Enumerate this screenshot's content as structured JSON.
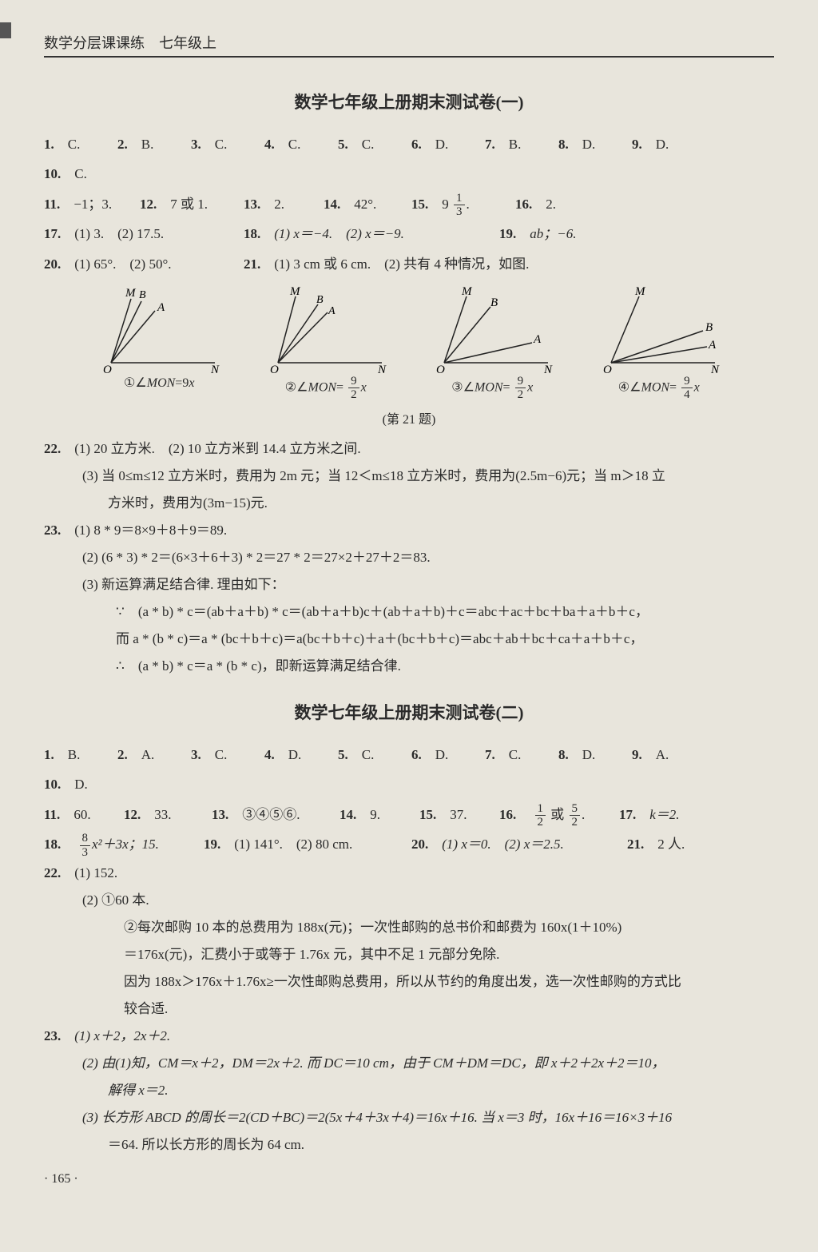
{
  "header": "数学分层课课练　七年级上",
  "title1": "数学七年级上册期末测试卷(一)",
  "title2": "数学七年级上册期末测试卷(二)",
  "caption21": "(第 21 题)",
  "pagenum": "· 165 ·",
  "t1": {
    "mc": [
      {
        "n": "1.",
        "a": "C."
      },
      {
        "n": "2.",
        "a": "B."
      },
      {
        "n": "3.",
        "a": "C."
      },
      {
        "n": "4.",
        "a": "C."
      },
      {
        "n": "5.",
        "a": "C."
      },
      {
        "n": "6.",
        "a": "D."
      },
      {
        "n": "7.",
        "a": "B."
      },
      {
        "n": "8.",
        "a": "D."
      },
      {
        "n": "9.",
        "a": "D."
      },
      {
        "n": "10.",
        "a": "C."
      }
    ],
    "r2": {
      "q11": "11.",
      "a11": "−1；3.",
      "q12": "12.",
      "a12": "7 或 1.",
      "q13": "13.",
      "a13": "2.",
      "q14": "14.",
      "a14": "42°.",
      "q15": "15.",
      "a15a": "9",
      "a15n": "1",
      "a15d": "3",
      "a15e": ".",
      "q16": "16.",
      "a16": "2."
    },
    "r3": {
      "q17": "17.",
      "a17": "(1) 3.　(2) 17.5.",
      "q18": "18.",
      "a18": "(1) x＝−4.　(2) x＝−9.",
      "q19": "19.",
      "a19": "ab；−6."
    },
    "r4": {
      "q20": "20.",
      "a20": "(1) 65°.　(2) 50°.",
      "q21": "21.",
      "a21": "(1) 3 cm 或 6 cm.　(2) 共有 4 种情况，如图."
    },
    "diag": {
      "l1a": "①∠",
      "l1m": "MON",
      "l1b": "=9",
      "l1x": "x",
      "l2a": "②∠",
      "l2m": "MON",
      "l2b": "= ",
      "l2n": "9",
      "l2d": "2",
      "l2x": "x",
      "l3a": "③∠",
      "l3m": "MON",
      "l3b": "= ",
      "l3n": "9",
      "l3d": "2",
      "l3x": "x",
      "l4a": "④∠",
      "l4m": "MON",
      "l4b": "= ",
      "l4n": "9",
      "l4d": "4",
      "l4x": "x"
    },
    "q22": {
      "head": "22.",
      "p1": "(1) 20 立方米.　(2) 10 立方米到 14.4 立方米之间.",
      "p2": "(3) 当 0≤m≤12 立方米时，费用为 2m 元；当 12＜m≤18 立方米时，费用为(2.5m−6)元；当 m＞18 立",
      "p3": "方米时，费用为(3m−15)元."
    },
    "q23": {
      "head": "23.",
      "p1": "(1) 8 * 9＝8×9＋8＋9＝89.",
      "p2": "(2) (6 * 3) * 2＝(6×3＋6＋3) * 2＝27 * 2＝27×2＋27＋2＝83.",
      "p3": "(3) 新运算满足结合律. 理由如下：",
      "p4": "∵　(a * b) * c＝(ab＋a＋b) * c＝(ab＋a＋b)c＋(ab＋a＋b)＋c＝abc＋ac＋bc＋ba＋a＋b＋c，",
      "p5": "而 a * (b * c)＝a * (bc＋b＋c)＝a(bc＋b＋c)＋a＋(bc＋b＋c)＝abc＋ab＋bc＋ca＋a＋b＋c，",
      "p6": "∴　(a * b) * c＝a * (b * c)，即新运算满足结合律."
    }
  },
  "t2": {
    "mc": [
      {
        "n": "1.",
        "a": "B."
      },
      {
        "n": "2.",
        "a": "A."
      },
      {
        "n": "3.",
        "a": "C."
      },
      {
        "n": "4.",
        "a": "D."
      },
      {
        "n": "5.",
        "a": "C."
      },
      {
        "n": "6.",
        "a": "D."
      },
      {
        "n": "7.",
        "a": "C."
      },
      {
        "n": "8.",
        "a": "D."
      },
      {
        "n": "9.",
        "a": "A."
      },
      {
        "n": "10.",
        "a": "D."
      }
    ],
    "r2": {
      "q11": "11.",
      "a11": "60.",
      "q12": "12.",
      "a12": "33.",
      "q13": "13.",
      "a13": "③④⑤⑥.",
      "q14": "14.",
      "a14": "9.",
      "q15": "15.",
      "a15": "37.",
      "q16": "16.",
      "a16n1": "1",
      "a16d1": "2",
      "a16m": "或",
      "a16n2": "5",
      "a16d2": "2",
      "a16e": ".",
      "q17": "17.",
      "a17": "k＝2."
    },
    "r3": {
      "q18": "18.",
      "a18n": "8",
      "a18d": "3",
      "a18b": "x²＋3x；15.",
      "q19": "19.",
      "a19": "(1) 141°.　(2) 80 cm.",
      "q20": "20.",
      "a20": "(1) x＝0.　(2) x＝2.5.",
      "q21": "21.",
      "a21": "2 人."
    },
    "q22": {
      "head": "22.",
      "p1": "(1) 152.",
      "p2": "(2) ①60 本.",
      "p3": "②每次邮购 10 本的总费用为 188x(元)；一次性邮购的总书价和邮费为 160x(1＋10%)",
      "p4": "＝176x(元)，汇费小于或等于 1.76x 元，其中不足 1 元部分免除.",
      "p5": "因为 188x＞176x＋1.76x≥一次性邮购总费用，所以从节约的角度出发，选一次性邮购的方式比",
      "p6": "较合适."
    },
    "q23": {
      "head": "23.",
      "p1": "(1) x＋2，2x＋2.",
      "p2": "(2) 由(1)知，CM＝x＋2，DM＝2x＋2. 而 DC＝10 cm，由于 CM＋DM＝DC，即 x＋2＋2x＋2＝10，",
      "p3": "解得 x＝2.",
      "p4": "(3) 长方形 ABCD 的周长＝2(CD＋BC)＝2(5x＋4＋3x＋4)＝16x＋16. 当 x＝3 时，16x＋16＝16×3＋16",
      "p5": "＝64. 所以长方形的周长为 64 cm."
    }
  }
}
